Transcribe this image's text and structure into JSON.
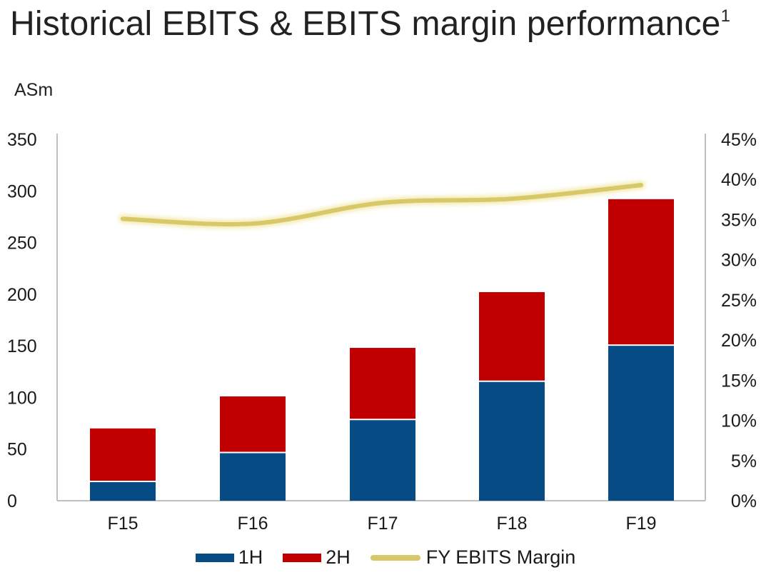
{
  "title": "Historical EBlTS & EBITS margin performance",
  "title_footnote": "1",
  "unit_label": "ASm",
  "chart_data": {
    "type": "bar",
    "stacked": true,
    "categories": [
      "F15",
      "F16",
      "F17",
      "F18",
      "F19"
    ],
    "series": [
      {
        "name": "1H",
        "values": [
          18,
          46,
          78,
          115,
          150
        ],
        "color": "#074B84"
      },
      {
        "name": "2H",
        "values": [
          52,
          55,
          70,
          87,
          142
        ],
        "color": "#C00000"
      }
    ],
    "line_series": {
      "name": "FY EBITS Margin",
      "values": [
        35.1,
        34.5,
        37.1,
        37.6,
        39.3
      ],
      "color": "#D8C86A",
      "axis": "right"
    },
    "ylim": [
      0,
      350
    ],
    "yticks": [
      "0",
      "50",
      "100",
      "150",
      "200",
      "250",
      "300",
      "350"
    ],
    "y2lim": [
      0,
      45
    ],
    "y2ticks": [
      "0%",
      "5%",
      "10%",
      "15%",
      "20%",
      "25%",
      "30%",
      "35%",
      "40%",
      "45%"
    ],
    "ylabel": "ASm",
    "grid": false,
    "legend_position": "bottom"
  },
  "legend": [
    {
      "label": "1H",
      "kind": "bar",
      "color": "#074B84"
    },
    {
      "label": "2H",
      "kind": "bar",
      "color": "#C00000"
    },
    {
      "label": "FY EBITS Margin",
      "kind": "line",
      "color": "#D8C86A"
    }
  ]
}
